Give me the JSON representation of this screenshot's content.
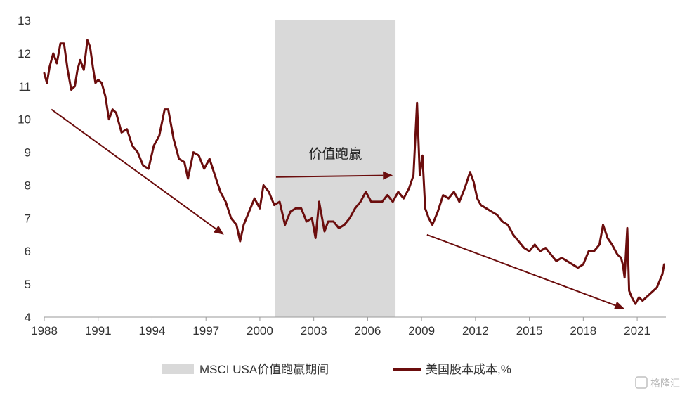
{
  "chart_data": {
    "type": "line",
    "title": "",
    "xlabel": "",
    "ylabel": "",
    "xlim": [
      1988,
      2022.6
    ],
    "ylim": [
      4,
      13
    ],
    "x_ticks": [
      1988,
      1991,
      1994,
      1997,
      2000,
      2003,
      2006,
      2009,
      2012,
      2015,
      2018,
      2021
    ],
    "x_tick_labels": [
      "1988",
      "1991",
      "1994",
      "1997",
      "2000",
      "2003",
      "2006",
      "2009",
      "2012",
      "2015",
      "2018",
      "2021"
    ],
    "y_ticks": [
      4,
      5,
      6,
      7,
      8,
      9,
      10,
      11,
      12,
      13
    ],
    "y_tick_labels": [
      "4",
      "5",
      "6",
      "7",
      "8",
      "9",
      "10",
      "11",
      "12",
      "13"
    ],
    "grid": false,
    "legend_position": "bottom-center",
    "shaded_region": {
      "label": "MSCI  USA价值跑赢期间",
      "x_start": 2000.85,
      "x_end": 2007.55,
      "color": "#d9d9d9"
    },
    "series": [
      {
        "name": "美国股本成本,%",
        "color": "#6b0d0d",
        "x": [
          1988.0,
          1988.15,
          1988.3,
          1988.5,
          1988.7,
          1988.9,
          1989.1,
          1989.3,
          1989.5,
          1989.7,
          1989.85,
          1990.0,
          1990.2,
          1990.4,
          1990.55,
          1990.7,
          1990.85,
          1991.0,
          1991.2,
          1991.4,
          1991.6,
          1991.8,
          1992.0,
          1992.3,
          1992.6,
          1992.9,
          1993.2,
          1993.5,
          1993.8,
          1994.1,
          1994.4,
          1994.7,
          1994.9,
          1995.2,
          1995.5,
          1995.8,
          1996.0,
          1996.3,
          1996.6,
          1996.9,
          1997.2,
          1997.5,
          1997.8,
          1998.1,
          1998.4,
          1998.7,
          1998.9,
          1999.1,
          1999.4,
          1999.7,
          2000.0,
          2000.2,
          2000.5,
          2000.8,
          2001.1,
          2001.4,
          2001.7,
          2002.0,
          2002.3,
          2002.6,
          2002.9,
          2003.1,
          2003.3,
          2003.6,
          2003.8,
          2004.1,
          2004.4,
          2004.7,
          2005.0,
          2005.3,
          2005.6,
          2005.9,
          2006.2,
          2006.5,
          2006.8,
          2007.1,
          2007.4,
          2007.7,
          2008.0,
          2008.3,
          2008.55,
          2008.75,
          2008.9,
          2009.05,
          2009.2,
          2009.4,
          2009.6,
          2009.9,
          2010.2,
          2010.5,
          2010.8,
          2011.1,
          2011.4,
          2011.7,
          2011.9,
          2012.1,
          2012.3,
          2012.6,
          2012.9,
          2013.2,
          2013.5,
          2013.8,
          2014.1,
          2014.4,
          2014.7,
          2015.0,
          2015.3,
          2015.6,
          2015.9,
          2016.2,
          2016.5,
          2016.8,
          2017.1,
          2017.4,
          2017.7,
          2018.0,
          2018.3,
          2018.6,
          2018.9,
          2019.1,
          2019.35,
          2019.6,
          2019.9,
          2020.1,
          2020.2,
          2020.3,
          2020.45,
          2020.55,
          2020.7,
          2020.9,
          2021.1,
          2021.3,
          2021.5,
          2021.7,
          2021.9,
          2022.1,
          2022.25,
          2022.4,
          2022.5
        ],
        "values": [
          11.4,
          11.1,
          11.6,
          12.0,
          11.7,
          12.3,
          12.3,
          11.5,
          10.9,
          11.0,
          11.5,
          11.8,
          11.5,
          12.4,
          12.2,
          11.6,
          11.1,
          11.2,
          11.1,
          10.7,
          10.0,
          10.3,
          10.2,
          9.6,
          9.7,
          9.2,
          9.0,
          8.6,
          8.5,
          9.2,
          9.5,
          10.3,
          10.3,
          9.4,
          8.8,
          8.7,
          8.2,
          9.0,
          8.9,
          8.5,
          8.8,
          8.3,
          7.8,
          7.5,
          7.0,
          6.8,
          6.3,
          6.8,
          7.2,
          7.6,
          7.3,
          8.0,
          7.8,
          7.4,
          7.5,
          6.8,
          7.2,
          7.3,
          7.3,
          6.9,
          7.0,
          6.4,
          7.5,
          6.6,
          6.9,
          6.9,
          6.7,
          6.8,
          7.0,
          7.3,
          7.5,
          7.8,
          7.5,
          7.5,
          7.5,
          7.7,
          7.5,
          7.8,
          7.6,
          7.9,
          8.3,
          10.5,
          8.3,
          8.9,
          7.3,
          7.0,
          6.8,
          7.2,
          7.7,
          7.6,
          7.8,
          7.5,
          7.9,
          8.4,
          8.1,
          7.6,
          7.4,
          7.3,
          7.2,
          7.1,
          6.9,
          6.8,
          6.5,
          6.3,
          6.1,
          6.0,
          6.2,
          6.0,
          6.1,
          5.9,
          5.7,
          5.8,
          5.7,
          5.6,
          5.5,
          5.6,
          6.0,
          6.0,
          6.2,
          6.8,
          6.4,
          6.2,
          5.9,
          5.8,
          5.6,
          5.2,
          6.7,
          4.8,
          4.6,
          4.4,
          4.6,
          4.5,
          4.6,
          4.7,
          4.8,
          4.9,
          5.1,
          5.3,
          5.6
        ]
      }
    ],
    "annotations": [
      {
        "label": "",
        "type": "arrow",
        "from": [
          1988.4,
          10.3
        ],
        "to": [
          1998.0,
          6.5
        ]
      },
      {
        "label": "",
        "type": "arrow",
        "from": [
          2000.9,
          8.25
        ],
        "to": [
          2007.4,
          8.3
        ]
      },
      {
        "label": "",
        "type": "arrow",
        "from": [
          2009.3,
          6.5
        ],
        "to": [
          2020.3,
          4.25
        ]
      },
      {
        "label": "价值跑赢",
        "type": "text",
        "at": [
          2004.2,
          8.95
        ]
      }
    ]
  },
  "watermark": {
    "label": "格隆汇"
  }
}
